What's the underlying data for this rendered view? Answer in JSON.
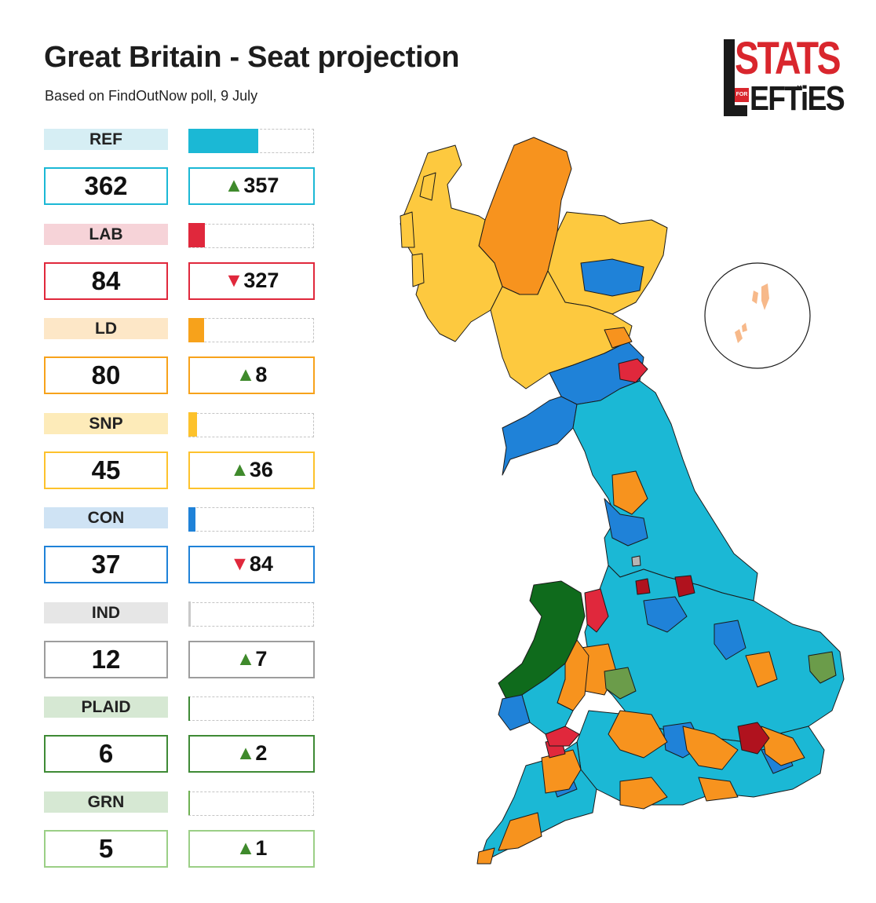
{
  "header": {
    "title": "Great Britain - Seat projection",
    "subtitle": "Based on FindOutNow poll, 9 July"
  },
  "logo": {
    "top": "STATS",
    "for": "FOR",
    "bottom": "EFTiES"
  },
  "bar_scale_max": 650,
  "parties": [
    {
      "code": "REF",
      "seats": "362",
      "direction": "up",
      "change": "357",
      "color": "#1bb8d5",
      "label_bg": "#d6eef4",
      "box_border": "#1bb8d5"
    },
    {
      "code": "LAB",
      "seats": "84",
      "direction": "down",
      "change": "327",
      "color": "#e0283c",
      "label_bg": "#f6d3d8",
      "box_border": "#e0283c"
    },
    {
      "code": "LD",
      "seats": "80",
      "direction": "up",
      "change": "8",
      "color": "#f7a21b",
      "label_bg": "#fde7c7",
      "box_border": "#f7a21b"
    },
    {
      "code": "SNP",
      "seats": "45",
      "direction": "up",
      "change": "36",
      "color": "#fdc22c",
      "label_bg": "#fdebb9",
      "box_border": "#fdc22c"
    },
    {
      "code": "CON",
      "seats": "37",
      "direction": "down",
      "change": "84",
      "color": "#1f82d8",
      "label_bg": "#cfe3f4",
      "box_border": "#1f82d8"
    },
    {
      "code": "IND",
      "seats": "12",
      "direction": "up",
      "change": "7",
      "color": "#c9c9c9",
      "label_bg": "#e6e6e6",
      "box_border": "#9d9d9d"
    },
    {
      "code": "PLAID",
      "seats": "6",
      "direction": "up",
      "change": "2",
      "color": "#3e8a35",
      "label_bg": "#d6e8d3",
      "box_border": "#3e8a35"
    },
    {
      "code": "GRN",
      "seats": "5",
      "direction": "up",
      "change": "1",
      "color": "#6fb152",
      "label_bg": "#d6e8d3",
      "box_border": "#9bcf86"
    }
  ],
  "arrow_up_color": "#3f8a2c",
  "arrow_down_color": "#e0283c",
  "map_colors": {
    "REF": "#1bb8d5",
    "LAB": "#e0283c",
    "LAB_dark": "#b0121e",
    "LD": "#f7931e",
    "SNP": "#fdc93f",
    "CON": "#1f82d8",
    "PLAID": "#0f6b1c",
    "GRN": "#6b9c4a",
    "IND": "#b4b4b4"
  }
}
